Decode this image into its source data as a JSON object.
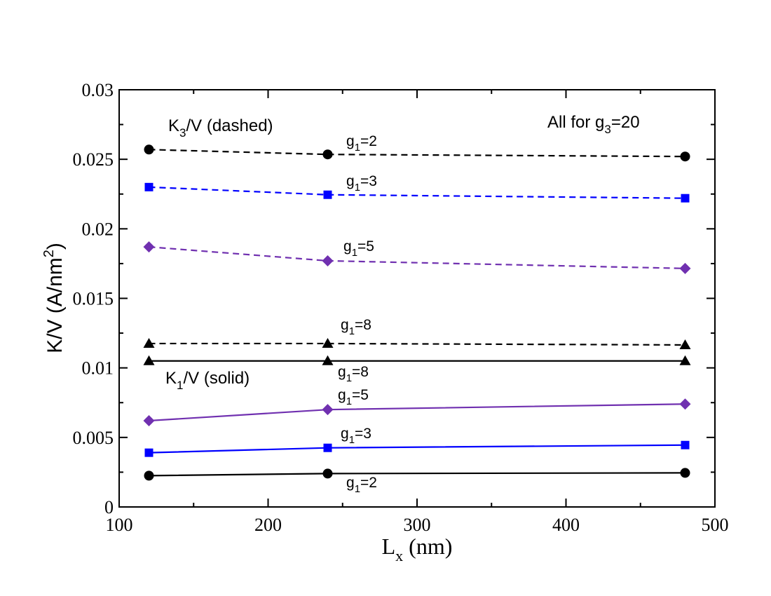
{
  "chart_data": {
    "type": "line",
    "xlabel": "L",
    "xlabel_sub": "x",
    "xlabel_unit": "(nm)",
    "ylabel": "K/V (A/nm",
    "ylabel_sup": "2",
    "ylabel_close": ")",
    "xlim": [
      100,
      500
    ],
    "ylim": [
      0,
      0.03
    ],
    "x_ticks": [
      "100",
      "200",
      "300",
      "400",
      "500"
    ],
    "y_ticks": [
      "0",
      "0.005",
      "0.01",
      "0.015",
      "0.02",
      "0.025",
      "0.03"
    ],
    "x_tick_values": [
      100,
      200,
      300,
      400,
      500
    ],
    "y_tick_values": [
      0,
      0.005,
      0.01,
      0.015,
      0.02,
      0.025,
      0.03
    ],
    "x": [
      120,
      240,
      480
    ],
    "annotation_main": {
      "text": "All for g",
      "sub": "3",
      "rest": "=20"
    },
    "annotation_k3": {
      "text": "K",
      "sub": "3",
      "rest": "/V (dashed)"
    },
    "annotation_k1": {
      "text": "K",
      "sub": "1",
      "rest": "/V (solid)"
    },
    "series": [
      {
        "name": "K3/V g1=2",
        "group": "K3",
        "g1": "2",
        "color": "#000000",
        "dash": true,
        "marker": "circle",
        "values": [
          0.0257,
          0.02535,
          0.0252
        ],
        "label": {
          "text": "g",
          "sub": "1",
          "rest": "=2"
        }
      },
      {
        "name": "K3/V g1=3",
        "group": "K3",
        "g1": "3",
        "color": "#0000ff",
        "dash": true,
        "marker": "square",
        "values": [
          0.023,
          0.02245,
          0.0222
        ],
        "label": {
          "text": "g",
          "sub": "1",
          "rest": "=3"
        }
      },
      {
        "name": "K3/V g1=5",
        "group": "K3",
        "g1": "5",
        "color": "#7030b0",
        "dash": true,
        "marker": "diamond",
        "values": [
          0.0187,
          0.0177,
          0.01715
        ],
        "label": {
          "text": "g",
          "sub": "1",
          "rest": "=5"
        }
      },
      {
        "name": "K3/V g1=8",
        "group": "K3",
        "g1": "8",
        "color": "#000000",
        "dash": true,
        "marker": "triangle",
        "values": [
          0.01175,
          0.01175,
          0.01165
        ],
        "label": {
          "text": "g",
          "sub": "1",
          "rest": "=8"
        }
      },
      {
        "name": "K1/V g1=8",
        "group": "K1",
        "g1": "8",
        "color": "#000000",
        "dash": false,
        "marker": "triangle",
        "values": [
          0.0105,
          0.0105,
          0.0105
        ],
        "label": {
          "text": "g",
          "sub": "1",
          "rest": "=8"
        }
      },
      {
        "name": "K1/V g1=5",
        "group": "K1",
        "g1": "5",
        "color": "#7030b0",
        "dash": false,
        "marker": "diamond",
        "values": [
          0.0062,
          0.007,
          0.0074
        ],
        "label": {
          "text": "g",
          "sub": "1",
          "rest": "=5"
        }
      },
      {
        "name": "K1/V g1=3",
        "group": "K1",
        "g1": "3",
        "color": "#0000ff",
        "dash": false,
        "marker": "square",
        "values": [
          0.0039,
          0.00425,
          0.00445
        ],
        "label": {
          "text": "g",
          "sub": "1",
          "rest": "=3"
        }
      },
      {
        "name": "K1/V g1=2",
        "group": "K1",
        "g1": "2",
        "color": "#000000",
        "dash": false,
        "marker": "circle",
        "values": [
          0.00225,
          0.0024,
          0.00245
        ],
        "label": {
          "text": "g",
          "sub": "1",
          "rest": "=2"
        }
      }
    ]
  }
}
